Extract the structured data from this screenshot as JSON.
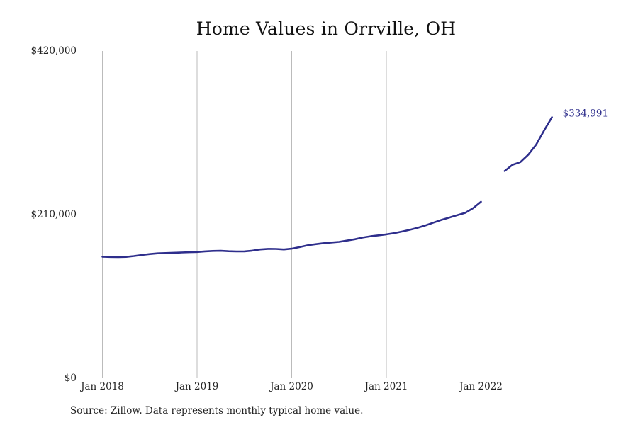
{
  "title": "Home Values in Orrville, OH",
  "source_note": "Source: Zillow. Data represents monthly typical home value.",
  "colors": {
    "line": "#2e2e8c",
    "gridline": "#bbbbbb",
    "text": "#222222",
    "end_label": "#2e2e8c"
  },
  "chart_data": {
    "type": "line",
    "title": "Home Values in Orrville, OH",
    "xlabel": "",
    "ylabel": "",
    "x_tick_labels": [
      "Jan 2018",
      "Jan 2019",
      "Jan 2020",
      "Jan 2021",
      "Jan 2022"
    ],
    "y_tick_labels": [
      "$0",
      "$210,000",
      "$420,000"
    ],
    "y_ticks": [
      0,
      210000,
      420000
    ],
    "ylim": [
      0,
      420000
    ],
    "xlim": [
      "2018-01",
      "2022-12"
    ],
    "grid": "vertical",
    "end_label": "$334,991",
    "series": [
      {
        "segments": [
          {
            "x": [
              "2018-01",
              "2018-02",
              "2018-03",
              "2018-04",
              "2018-05",
              "2018-06",
              "2018-07",
              "2018-08",
              "2018-09",
              "2018-10",
              "2018-11",
              "2018-12",
              "2019-01",
              "2019-02",
              "2019-03",
              "2019-04",
              "2019-05",
              "2019-06",
              "2019-07",
              "2019-08",
              "2019-09",
              "2019-10",
              "2019-11",
              "2019-12",
              "2020-01",
              "2020-02",
              "2020-03",
              "2020-04",
              "2020-05",
              "2020-06",
              "2020-07",
              "2020-08",
              "2020-09",
              "2020-10",
              "2020-11",
              "2020-12",
              "2021-01",
              "2021-02",
              "2021-03",
              "2021-04",
              "2021-05",
              "2021-06",
              "2021-07",
              "2021-08",
              "2021-09",
              "2021-10",
              "2021-11",
              "2021-12",
              "2022-01"
            ],
            "y": [
              156000,
              155600,
              155500,
              155700,
              156800,
              158200,
              159400,
              160300,
              160600,
              161000,
              161400,
              161700,
              162000,
              162800,
              163400,
              163500,
              163000,
              162700,
              162800,
              163700,
              165300,
              166000,
              165900,
              165300,
              166300,
              168300,
              170500,
              172000,
              173300,
              174200,
              175000,
              176600,
              178400,
              180500,
              182200,
              183400,
              184600,
              186200,
              188300,
              190500,
              193200,
              196300,
              199800,
              203300,
              206300,
              209400,
              212300,
              218300,
              226500
            ]
          },
          {
            "x": [
              "2022-04",
              "2022-05",
              "2022-06",
              "2022-07",
              "2022-08",
              "2022-09",
              "2022-10"
            ],
            "y": [
              266000,
              274000,
              277500,
              287000,
              300000,
              318000,
              334991
            ]
          }
        ]
      }
    ]
  }
}
